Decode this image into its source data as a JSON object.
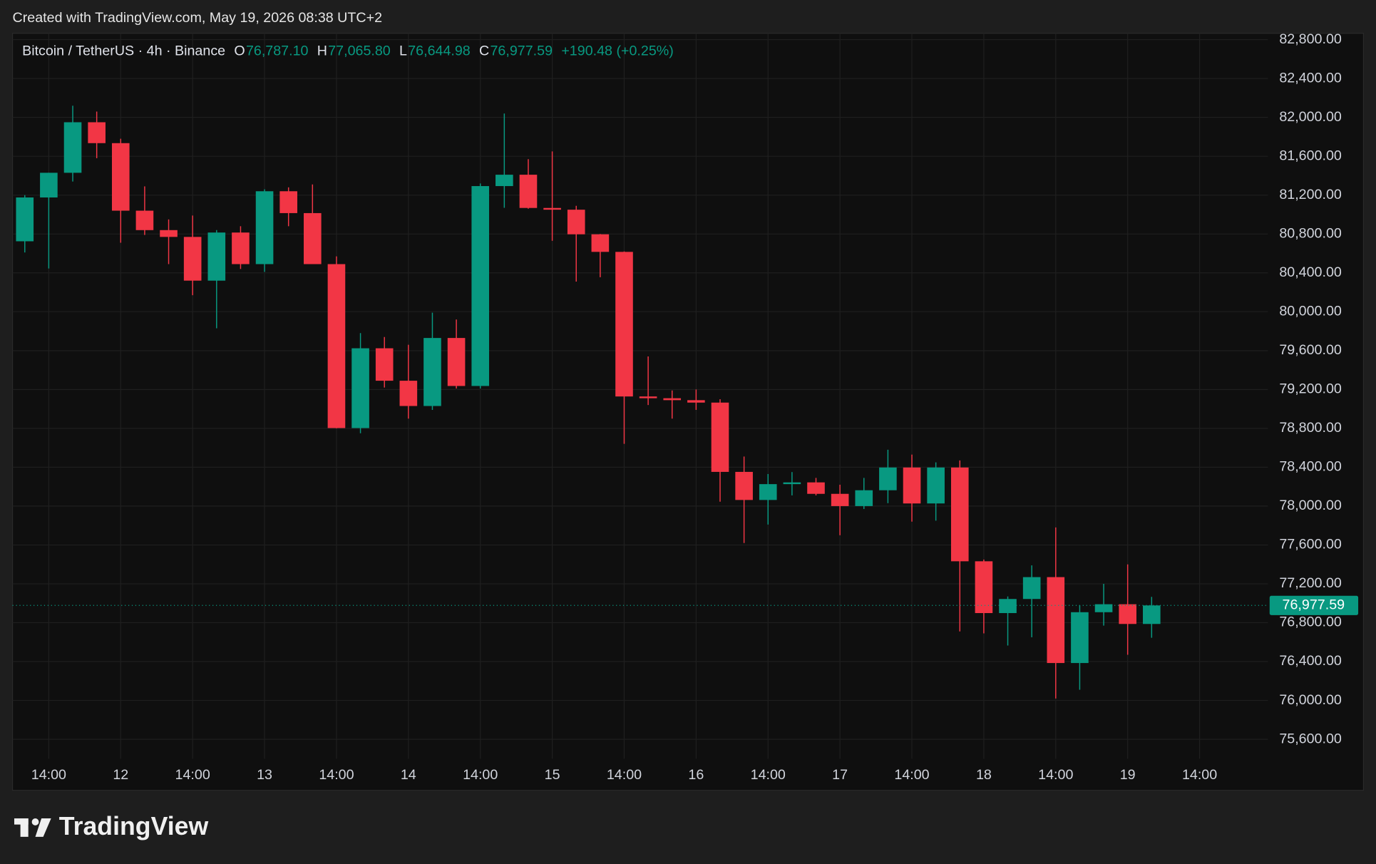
{
  "chart_data": {
    "type": "candlestick",
    "caption": "Created with TradingView.com, May 19, 2026 08:38 UTC+2",
    "title": "Bitcoin / TetherUS · 4h · Binance",
    "legend_items": [
      {
        "label": "O",
        "value": "76,787.10"
      },
      {
        "label": "H",
        "value": "77,065.80"
      },
      {
        "label": "L",
        "value": "76,644.98"
      },
      {
        "label": "C",
        "value": "76,977.59"
      }
    ],
    "change": "+190.48 (+0.25%)",
    "brand": "TradingView",
    "up_color": "#089981",
    "down_color": "#f23645",
    "grid": true,
    "categories": [
      null,
      "14:00",
      null,
      null,
      "12",
      null,
      null,
      "14:00",
      null,
      null,
      "13",
      null,
      null,
      "14:00",
      null,
      null,
      "14",
      null,
      null,
      "14:00",
      null,
      null,
      "15",
      null,
      null,
      "14:00",
      null,
      null,
      "16",
      null,
      null,
      "14:00",
      null,
      null,
      "17",
      null,
      null,
      "14:00",
      null,
      null,
      "18",
      null,
      null,
      "14:00",
      null,
      null,
      "19",
      null,
      null,
      "14:00"
    ],
    "open": [
      80725,
      81176,
      81430,
      81950,
      81735,
      81040,
      80840,
      80770,
      80320,
      80815,
      80490,
      81240,
      81015,
      80490,
      78803,
      79624,
      79290,
      79030,
      79730,
      79236,
      81293,
      81410,
      81068,
      81050,
      80797,
      80616,
      79128,
      79110,
      79090,
      79065,
      78352,
      78063,
      78226,
      78244,
      78126,
      78000,
      78163,
      78397,
      78027,
      78397,
      77432,
      76899,
      77044,
      77269,
      76385,
      76908,
      76990,
      76787.1,
      null,
      null
    ],
    "high": [
      81200,
      81430,
      82120,
      82060,
      81780,
      81290,
      80950,
      80990,
      80840,
      80880,
      81260,
      81280,
      81310,
      80570,
      79780,
      79740,
      79660,
      79990,
      79920,
      81320,
      82040,
      81570,
      81650,
      81090,
      80800,
      80620,
      79540,
      79190,
      79200,
      79100,
      78510,
      78330,
      78350,
      78290,
      78220,
      78290,
      78580,
      78530,
      78450,
      78470,
      77450,
      77070,
      77390,
      77780,
      76980,
      77200,
      77400,
      77065.8,
      null,
      null
    ],
    "low": [
      80610,
      80445,
      81340,
      81580,
      80710,
      80790,
      80490,
      80170,
      79830,
      80440,
      80410,
      80880,
      80490,
      78800,
      78750,
      79220,
      78900,
      78990,
      79210,
      79210,
      81070,
      81060,
      80730,
      80310,
      80355,
      78640,
      79040,
      78900,
      78990,
      78045,
      77620,
      77810,
      78110,
      78110,
      77700,
      77970,
      78030,
      77840,
      77850,
      76710,
      76690,
      76565,
      76650,
      76020,
      76110,
      76770,
      76470,
      76644.98,
      null,
      null
    ],
    "close": [
      81176,
      81430,
      81950,
      81735,
      81040,
      80840,
      80770,
      80320,
      80815,
      80490,
      81240,
      81015,
      80490,
      78803,
      79624,
      79290,
      79030,
      79730,
      79236,
      81293,
      81410,
      81068,
      81050,
      80797,
      80616,
      79128,
      79110,
      79090,
      79065,
      78352,
      78063,
      78226,
      78244,
      78126,
      78000,
      78163,
      78397,
      78027,
      78397,
      77432,
      76899,
      77044,
      77269,
      76385,
      76908,
      76990,
      76787.1,
      76977.59,
      null,
      null
    ],
    "last_price": {
      "value": 76977.59,
      "label": "76,977.59"
    },
    "ylim": [
      75400,
      82865
    ],
    "yticks": [
      {
        "value": 75600,
        "label": "75,600.00"
      },
      {
        "value": 76000,
        "label": "76,000.00"
      },
      {
        "value": 76400,
        "label": "76,400.00"
      },
      {
        "value": 76800,
        "label": "76,800.00"
      },
      {
        "value": 77200,
        "label": "77,200.00"
      },
      {
        "value": 77600,
        "label": "77,600.00"
      },
      {
        "value": 78000,
        "label": "78,000.00"
      },
      {
        "value": 78400,
        "label": "78,400.00"
      },
      {
        "value": 78800,
        "label": "78,800.00"
      },
      {
        "value": 79200,
        "label": "79,200.00"
      },
      {
        "value": 79600,
        "label": "79,600.00"
      },
      {
        "value": 80000,
        "label": "80,000.00"
      },
      {
        "value": 80400,
        "label": "80,400.00"
      },
      {
        "value": 80800,
        "label": "80,800.00"
      },
      {
        "value": 81200,
        "label": "81,200.00"
      },
      {
        "value": 81600,
        "label": "81,600.00"
      },
      {
        "value": 82000,
        "label": "82,000.00"
      },
      {
        "value": 82400,
        "label": "82,400.00"
      },
      {
        "value": 82800,
        "label": "82,800.00"
      }
    ]
  }
}
